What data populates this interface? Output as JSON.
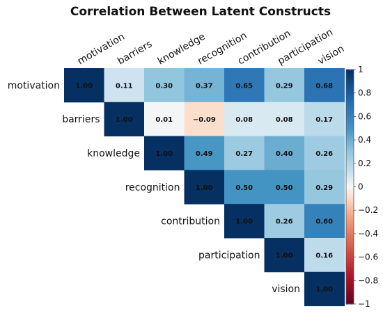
{
  "chart_data": {
    "type": "heatmap",
    "title": "Correlation Between Latent Constructs",
    "variables": [
      "motivation",
      "barriers",
      "knowledge",
      "recognition",
      "contribution",
      "participation",
      "vision"
    ],
    "layout": "upper-triangle",
    "values": [
      [
        1.0,
        0.11,
        0.3,
        0.37,
        0.65,
        0.29,
        0.68
      ],
      [
        null,
        1.0,
        0.01,
        -0.09,
        0.08,
        0.08,
        0.17
      ],
      [
        null,
        null,
        1.0,
        0.49,
        0.27,
        0.4,
        0.26
      ],
      [
        null,
        null,
        null,
        1.0,
        0.5,
        0.5,
        0.29
      ],
      [
        null,
        null,
        null,
        null,
        1.0,
        0.26,
        0.6
      ],
      [
        null,
        null,
        null,
        null,
        null,
        1.0,
        0.16
      ],
      [
        null,
        null,
        null,
        null,
        null,
        null,
        1.0
      ]
    ],
    "value_labels": [
      [
        "1.00",
        "0.11",
        "0.30",
        "0.37",
        "0.65",
        "0.29",
        "0.68"
      ],
      [
        null,
        "1.00",
        "0.01",
        "−0.09",
        "0.08",
        "0.08",
        "0.17"
      ],
      [
        null,
        null,
        "1.00",
        "0.49",
        "0.27",
        "0.40",
        "0.26"
      ],
      [
        null,
        null,
        null,
        "1.00",
        "0.50",
        "0.50",
        "0.29"
      ],
      [
        null,
        null,
        null,
        null,
        "1.00",
        "0.26",
        "0.60"
      ],
      [
        null,
        null,
        null,
        null,
        null,
        "1.00",
        "0.16"
      ],
      [
        null,
        null,
        null,
        null,
        null,
        null,
        "1.00"
      ]
    ],
    "colorbar": {
      "range": [
        -1,
        1
      ],
      "ticks": [
        1,
        0.8,
        0.6,
        0.4,
        0.2,
        0,
        -0.2,
        -0.4,
        -0.6,
        -0.8,
        -1
      ],
      "tick_labels": [
        "1",
        "0.8",
        "0.6",
        "0.4",
        "0.2",
        "0",
        "−0.2",
        "−0.4",
        "−0.6",
        "−0.8",
        "−1"
      ],
      "position": "right"
    },
    "colors": {
      "negative_end": "#67001f",
      "neutral": "#f7f7f7",
      "positive_end": "#053061"
    }
  }
}
